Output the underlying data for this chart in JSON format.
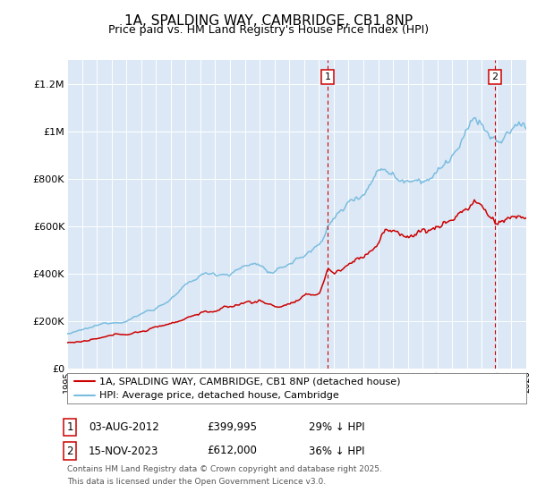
{
  "title": "1A, SPALDING WAY, CAMBRIDGE, CB1 8NP",
  "subtitle": "Price paid vs. HM Land Registry's House Price Index (HPI)",
  "ylim": [
    0,
    1300000
  ],
  "yticks": [
    0,
    200000,
    400000,
    600000,
    800000,
    1000000,
    1200000
  ],
  "ytick_labels": [
    "£0",
    "£200K",
    "£400K",
    "£600K",
    "£800K",
    "£1M",
    "£1.2M"
  ],
  "sale1_x": 2012.583,
  "sale1_price": 399995,
  "sale2_x": 2023.875,
  "sale2_price": 612000,
  "hpi_color": "#7bbde0",
  "price_color": "#cc0000",
  "vline_color": "#cc0000",
  "background_color": "#dce8f5",
  "legend_label_price": "1A, SPALDING WAY, CAMBRIDGE, CB1 8NP (detached house)",
  "legend_label_hpi": "HPI: Average price, detached house, Cambridge",
  "footnote_line1": "Contains HM Land Registry data © Crown copyright and database right 2025.",
  "footnote_line2": "This data is licensed under the Open Government Licence v3.0.",
  "xmin": 1995.0,
  "xmax": 2026.0
}
